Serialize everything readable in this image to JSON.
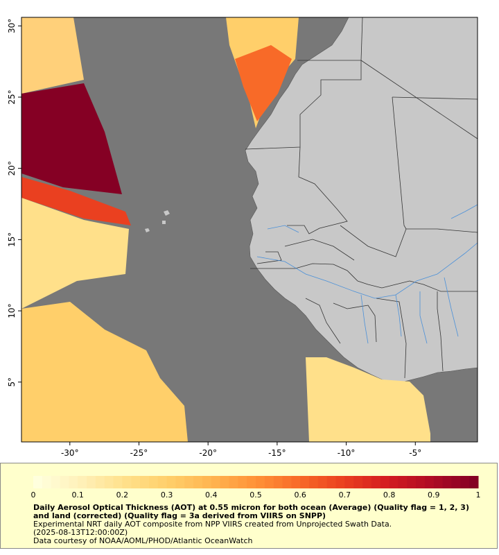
{
  "map": {
    "lon_range": [
      -33.5,
      -0.5
    ],
    "lat_range": [
      0.8,
      30.6
    ],
    "x_ticks": [
      {
        "lon": -30,
        "label": "-30°"
      },
      {
        "lon": -25,
        "label": "-25°"
      },
      {
        "lon": -20,
        "label": "-20°"
      },
      {
        "lon": -15,
        "label": "-15°"
      },
      {
        "lon": -10,
        "label": "-10°"
      },
      {
        "lon": -5,
        "label": "-5°"
      }
    ],
    "y_ticks": [
      {
        "lat": 30,
        "label": "30°"
      },
      {
        "lat": 25,
        "label": "25°"
      },
      {
        "lat": 20,
        "label": "20°"
      },
      {
        "lat": 15,
        "label": "15°"
      },
      {
        "lat": 10,
        "label": "10°"
      },
      {
        "lat": 5,
        "label": "5°"
      }
    ],
    "colors": {
      "ocean": "#787878",
      "land": "#c8c8c8",
      "border": "#333333",
      "river": "#4a90d9"
    }
  },
  "colorbar": {
    "min": 0,
    "max": 1,
    "tick_labels": [
      "0",
      "0.1",
      "0.2",
      "0.3",
      "0.4",
      "0.5",
      "0.6",
      "0.7",
      "0.8",
      "0.9",
      "1"
    ],
    "colors": [
      "#ffffdd",
      "#fff0b8",
      "#ffe08a",
      "#ffcf6a",
      "#ffb450",
      "#ff9238",
      "#f86a28",
      "#ea4020",
      "#d41c20",
      "#b00c24",
      "#850024"
    ]
  },
  "legend": {
    "title": "Daily Aerosol Optical Thickness (AOT) at 0.55 micron for both ocean (Average) (Quality flag = 1, 2, 3) and land (corrected) (Quality flag = 3a derived from VIIRS on SNPP)",
    "line1": "Experimental NRT daily AOT composite from NPP VIIRS created from Unprojected Swath Data.",
    "line2": "(2025-08-13T12:00:00Z)",
    "line3": "Data courtesy of NOAA/AOML/PHOD/Atlantic OceanWatch"
  }
}
